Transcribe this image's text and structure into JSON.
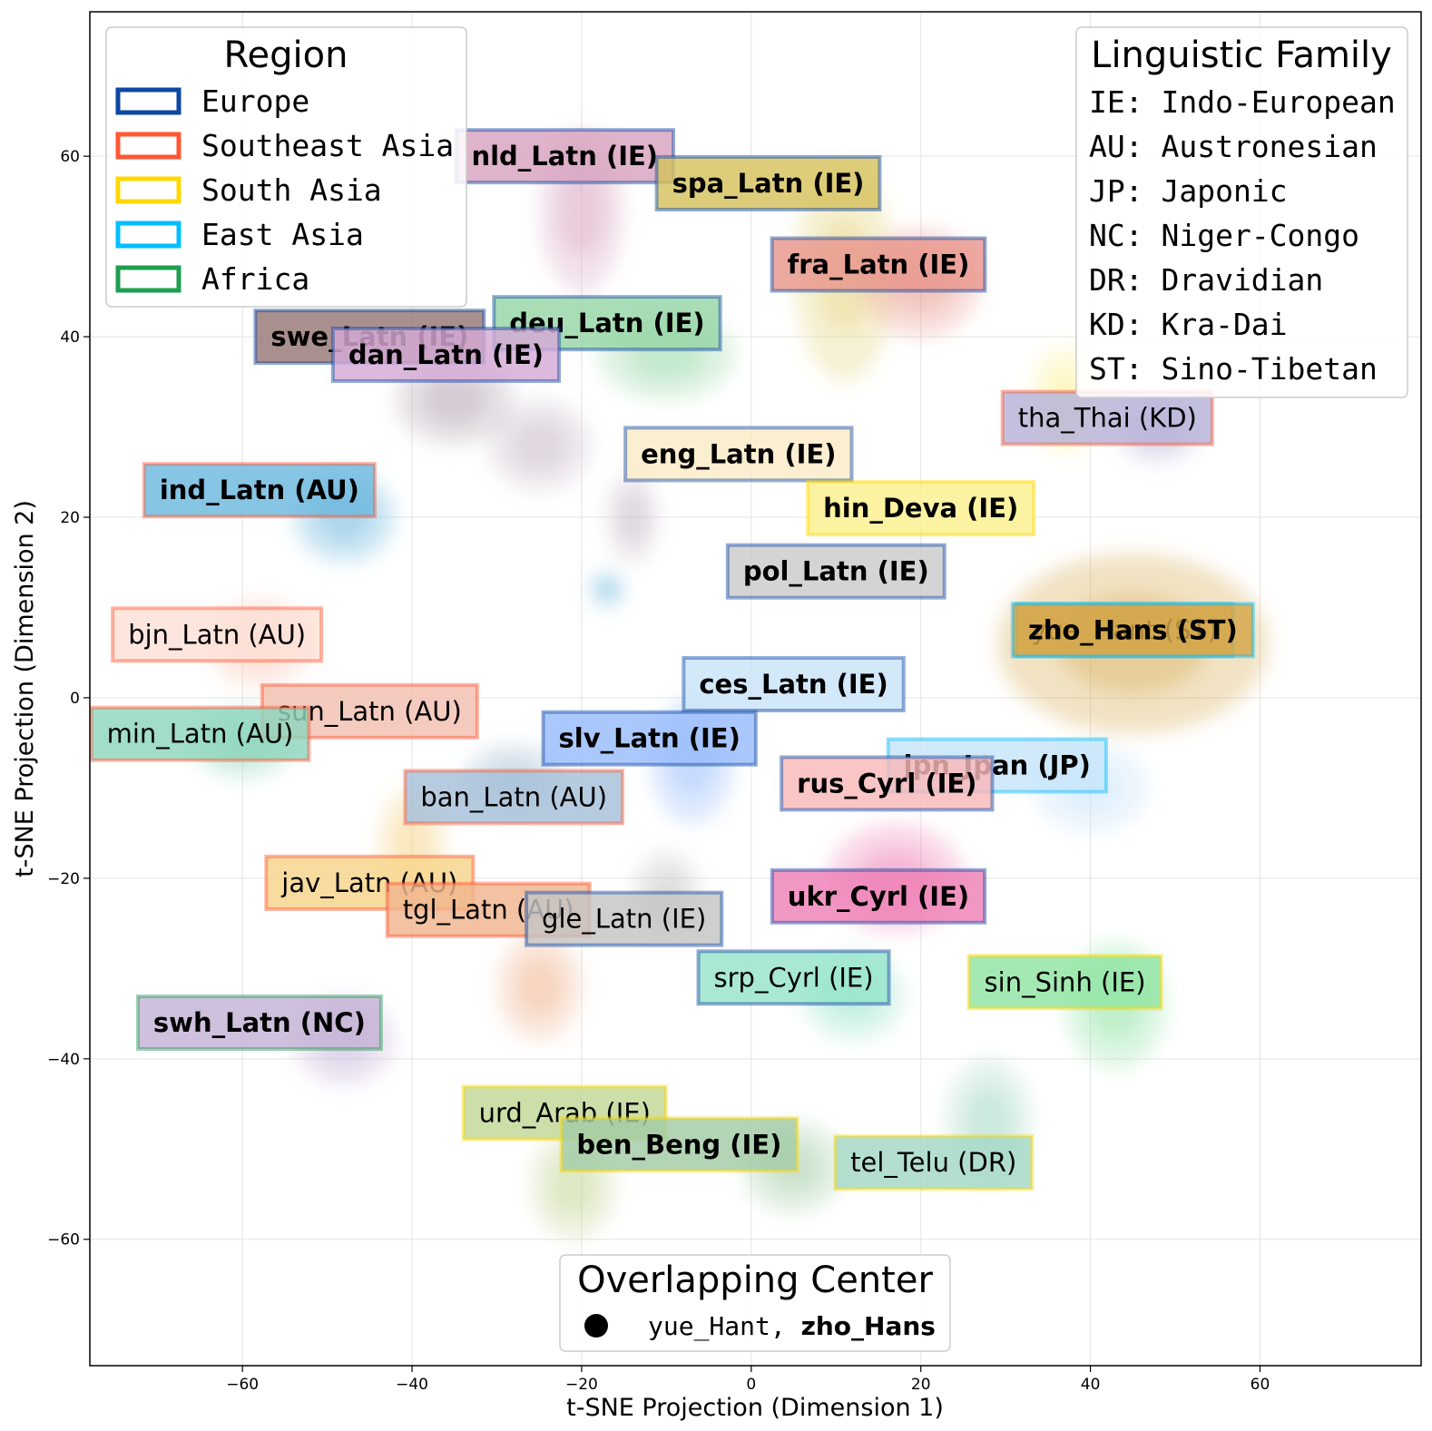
{
  "chart_data": {
    "type": "scatter",
    "xlabel": "t-SNE Projection (Dimension 1)",
    "ylabel": "t-SNE Projection (Dimension 2)",
    "xlim": [
      -78,
      79
    ],
    "ylim": [
      -74,
      76
    ],
    "xticks": [
      -60,
      -40,
      -20,
      0,
      20,
      40,
      60
    ],
    "yticks": [
      -60,
      -40,
      -20,
      0,
      20,
      40,
      60
    ],
    "grid": true,
    "regions": [
      {
        "name": "Europe",
        "color": "#0d47a1"
      },
      {
        "name": "Southeast Asia",
        "color": "#ff5733"
      },
      {
        "name": "South Asia",
        "color": "#ffd700"
      },
      {
        "name": "East Asia",
        "color": "#00bfff"
      },
      {
        "name": "Africa",
        "color": "#1e9e50"
      }
    ],
    "region_legend_title": "Region",
    "region_legend_position": "top-left",
    "family_legend_title": "Linguistic Family",
    "family_legend_position": "top-right",
    "families": [
      "IE: Indo-European",
      "AU: Austronesian",
      "JP: Japonic",
      "NC: Niger-Congo",
      "DR: Dravidian",
      "KD: Kra-Dai",
      "ST: Sino-Tibetan"
    ],
    "overlap_title": "Overlapping Center",
    "overlap_items": [
      "yue_Hant",
      "zho_Hans"
    ],
    "overlap_separator": ", ",
    "overlap_legend_position": "bottom-center",
    "languages": [
      {
        "label": "nld_Latn (IE)",
        "x": -22,
        "y": 60,
        "bold": true,
        "region": "Europe",
        "fill": "#d8a2c0"
      },
      {
        "label": "spa_Latn (IE)",
        "x": 2,
        "y": 57,
        "bold": true,
        "region": "Europe",
        "fill": "#d6c25e"
      },
      {
        "label": "fra_Latn (IE)",
        "x": 15,
        "y": 48,
        "bold": true,
        "region": "Europe",
        "fill": "#e8968c"
      },
      {
        "label": "deu_Latn (IE)",
        "x": -17,
        "y": 41.5,
        "bold": true,
        "region": "Europe",
        "fill": "#96d6a6"
      },
      {
        "label": "swe_Latn (IE)",
        "x": -45,
        "y": 40,
        "bold": true,
        "region": "Europe",
        "fill": "#967876"
      },
      {
        "label": "dan_Latn (IE)",
        "x": -36,
        "y": 38,
        "bold": true,
        "region": "Europe",
        "fill": "#d4aad6"
      },
      {
        "label": "tha_Thai (KD)",
        "x": 42,
        "y": 31,
        "bold": false,
        "region": "Southeast Asia",
        "fill": "#b6b2d8"
      },
      {
        "label": "eng_Latn (IE)",
        "x": -1.5,
        "y": 27,
        "bold": true,
        "region": "Europe",
        "fill": "#fbeac6"
      },
      {
        "label": "ind_Latn (AU)",
        "x": -58,
        "y": 23,
        "bold": true,
        "region": "Southeast Asia",
        "fill": "#6cb8de"
      },
      {
        "label": "hin_Deva (IE)",
        "x": 20,
        "y": 21,
        "bold": true,
        "region": "South Asia",
        "fill": "#fbf08e"
      },
      {
        "label": "pol_Latn (IE)",
        "x": 10,
        "y": 14,
        "bold": true,
        "region": "Europe",
        "fill": "#cacaca"
      },
      {
        "label": "yue_Hant (ST)",
        "x": 44,
        "y": 7.5,
        "bold": false,
        "region": "East Asia",
        "fill": "#d6b26e"
      },
      {
        "label": "zho_Hans (ST)",
        "x": 45,
        "y": 7.5,
        "bold": true,
        "region": "East Asia",
        "fill": "#d4a648"
      },
      {
        "label": "bjn_Latn (AU)",
        "x": -63,
        "y": 7,
        "bold": false,
        "region": "Southeast Asia",
        "fill": "#fde0d6"
      },
      {
        "label": "ces_Latn (IE)",
        "x": 5,
        "y": 1.5,
        "bold": true,
        "region": "Europe",
        "fill": "#c9e3f8"
      },
      {
        "label": "sun_Latn (AU)",
        "x": -45,
        "y": -1.5,
        "bold": false,
        "region": "Southeast Asia",
        "fill": "#f2c0b0"
      },
      {
        "label": "min_Latn (AU)",
        "x": -65,
        "y": -4,
        "bold": false,
        "region": "Southeast Asia",
        "fill": "#8ed6be"
      },
      {
        "label": "slv_Latn (IE)",
        "x": -12,
        "y": -4.5,
        "bold": true,
        "region": "Europe",
        "fill": "#98bcfc"
      },
      {
        "label": "jpn_Jpan (JP)",
        "x": 29,
        "y": -7.5,
        "bold": true,
        "region": "East Asia",
        "fill": "#c6e4fa"
      },
      {
        "label": "rus_Cyrl (IE)",
        "x": 16,
        "y": -9.5,
        "bold": true,
        "region": "Europe",
        "fill": "#f8b8b8"
      },
      {
        "label": "ban_Latn (AU)",
        "x": -28,
        "y": -11,
        "bold": false,
        "region": "Southeast Asia",
        "fill": "#a6c0d8"
      },
      {
        "label": "jav_Latn (AU)",
        "x": -45,
        "y": -20.5,
        "bold": false,
        "region": "Southeast Asia",
        "fill": "#f6d48a"
      },
      {
        "label": "ukr_Cyrl (IE)",
        "x": 15,
        "y": -22,
        "bold": true,
        "region": "Europe",
        "fill": "#ee80b6"
      },
      {
        "label": "tgl_Latn (AU)",
        "x": -31,
        "y": -23.5,
        "bold": false,
        "region": "Southeast Asia",
        "fill": "#f0b48e"
      },
      {
        "label": "gle_Latn (IE)",
        "x": -15,
        "y": -24.5,
        "bold": false,
        "region": "Europe",
        "fill": "#c4c4c4"
      },
      {
        "label": "srp_Cyrl (IE)",
        "x": 5,
        "y": -31,
        "bold": false,
        "region": "Europe",
        "fill": "#96e4ca"
      },
      {
        "label": "sin_Sinh (IE)",
        "x": 37,
        "y": -31.5,
        "bold": false,
        "region": "South Asia",
        "fill": "#90e4a2"
      },
      {
        "label": "swh_Latn (NC)",
        "x": -58,
        "y": -36,
        "bold": true,
        "region": "Africa",
        "fill": "#c4b2d6"
      },
      {
        "label": "urd_Arab (IE)",
        "x": -22,
        "y": -46,
        "bold": false,
        "region": "South Asia",
        "fill": "#c2d896"
      },
      {
        "label": "ben_Beng (IE)",
        "x": -8.5,
        "y": -49.5,
        "bold": true,
        "region": "South Asia",
        "fill": "#a2cca6"
      },
      {
        "label": "tel_Telu (DR)",
        "x": 21.5,
        "y": -51.5,
        "bold": false,
        "region": "South Asia",
        "fill": "#a4d8c6"
      }
    ],
    "clouds": [
      {
        "x": -20,
        "y": 54,
        "sx": 5,
        "sy": 9,
        "color": "#d8a2c0"
      },
      {
        "x": 11,
        "y": 47,
        "sx": 6,
        "sy": 12,
        "color": "#e4d27a"
      },
      {
        "x": 20,
        "y": 46,
        "sx": 7,
        "sy": 6,
        "color": "#e8968c"
      },
      {
        "x": -10,
        "y": 38,
        "sx": 8,
        "sy": 5,
        "color": "#96d6a6"
      },
      {
        "x": -35,
        "y": 33,
        "sx": 7,
        "sy": 5,
        "color": "#b4a2b2"
      },
      {
        "x": -25,
        "y": 28,
        "sx": 6,
        "sy": 5,
        "color": "#c8b8c8"
      },
      {
        "x": -14,
        "y": 20,
        "sx": 3,
        "sy": 5,
        "color": "#c8b8c8"
      },
      {
        "x": 37,
        "y": 33,
        "sx": 4,
        "sy": 6,
        "color": "#fbf08e"
      },
      {
        "x": 48,
        "y": 30,
        "sx": 5,
        "sy": 4,
        "color": "#b6b2d8"
      },
      {
        "x": -48,
        "y": 20,
        "sx": 6,
        "sy": 5,
        "color": "#6cb8de"
      },
      {
        "x": -17,
        "y": 12,
        "sx": 2,
        "sy": 2,
        "color": "#6cb8de"
      },
      {
        "x": 45,
        "y": 6,
        "sx": 16,
        "sy": 10,
        "color": "#d4a648"
      },
      {
        "x": -58,
        "y": 6,
        "sx": 6,
        "sy": 5,
        "color": "#fbc4b0"
      },
      {
        "x": -60,
        "y": -5,
        "sx": 6,
        "sy": 4,
        "color": "#8ed6be"
      },
      {
        "x": -7,
        "y": -7,
        "sx": 5,
        "sy": 7,
        "color": "#98bcfc"
      },
      {
        "x": 40,
        "y": -10,
        "sx": 7,
        "sy": 5,
        "color": "#c6e4fa"
      },
      {
        "x": -28,
        "y": -9,
        "sx": 6,
        "sy": 4,
        "color": "#a6c0d8"
      },
      {
        "x": -40,
        "y": -16,
        "sx": 4,
        "sy": 6,
        "color": "#f6d48a"
      },
      {
        "x": 17,
        "y": -20,
        "sx": 8,
        "sy": 6,
        "color": "#ee80b6"
      },
      {
        "x": -25,
        "y": -32,
        "sx": 5,
        "sy": 6,
        "color": "#f0b48e"
      },
      {
        "x": -10,
        "y": -22,
        "sx": 4,
        "sy": 5,
        "color": "#c4c4c4"
      },
      {
        "x": 12,
        "y": -33,
        "sx": 6,
        "sy": 5,
        "color": "#96e4ca"
      },
      {
        "x": 43,
        "y": -34,
        "sx": 6,
        "sy": 7,
        "color": "#90e4a2"
      },
      {
        "x": -48,
        "y": -38,
        "sx": 6,
        "sy": 5,
        "color": "#c4b2d6"
      },
      {
        "x": -21,
        "y": -54,
        "sx": 5,
        "sy": 6,
        "color": "#c2d896"
      },
      {
        "x": 5,
        "y": -52,
        "sx": 6,
        "sy": 5,
        "color": "#a2cca6"
      },
      {
        "x": 28,
        "y": -47,
        "sx": 5,
        "sy": 7,
        "color": "#a4d8c6"
      }
    ]
  }
}
